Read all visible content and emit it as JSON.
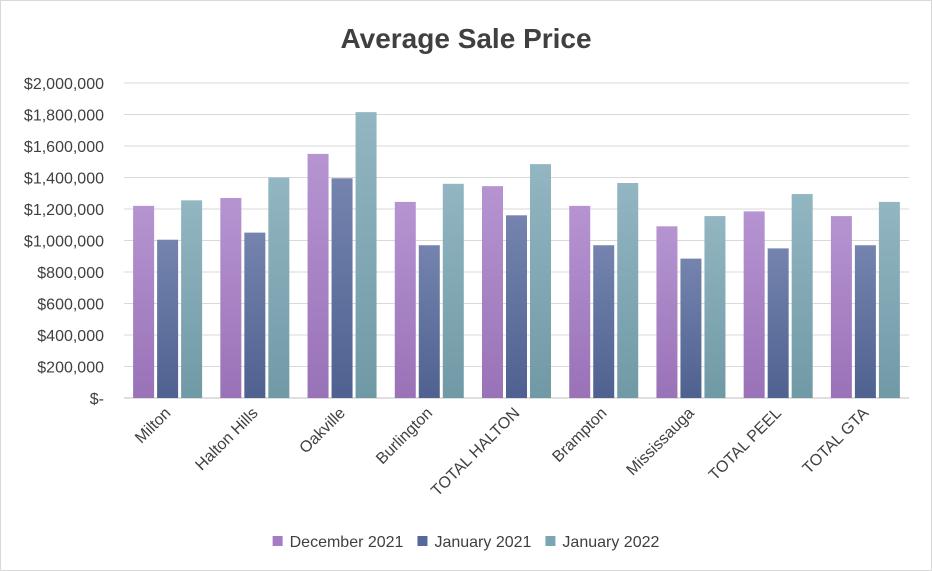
{
  "chart_data": {
    "type": "bar",
    "title": "Average Sale Price",
    "xlabel": "",
    "ylabel": "",
    "categories": [
      "Milton",
      "Halton Hills",
      "Oakville",
      "Burlington",
      "TOTAL HALTON",
      "Brampton",
      "Mississauga",
      "TOTAL PEEL",
      "TOTAL GTA"
    ],
    "series": [
      {
        "name": "December 2021",
        "color": "#a67cc7",
        "values": [
          1220000,
          1270000,
          1550000,
          1245000,
          1345000,
          1220000,
          1090000,
          1185000,
          1155000
        ]
      },
      {
        "name": "January 2021",
        "color": "#56699c",
        "values": [
          1005000,
          1050000,
          1395000,
          970000,
          1160000,
          970000,
          885000,
          950000,
          970000
        ]
      },
      {
        "name": "January 2022",
        "color": "#7aa6b4",
        "values": [
          1255000,
          1400000,
          1815000,
          1360000,
          1485000,
          1365000,
          1155000,
          1295000,
          1245000
        ]
      }
    ],
    "ylim": [
      0,
      2000000
    ],
    "yticks": [
      0,
      200000,
      400000,
      600000,
      800000,
      1000000,
      1200000,
      1400000,
      1600000,
      1800000,
      2000000
    ],
    "ytick_labels": [
      "$-",
      "$200,000",
      "$400,000",
      "$600,000",
      "$800,000",
      "$1,000,000",
      "$1,200,000",
      "$1,400,000",
      "$1,600,000",
      "$1,800,000",
      "$2,000,000"
    ],
    "grid": true,
    "legend_position": "bottom"
  }
}
